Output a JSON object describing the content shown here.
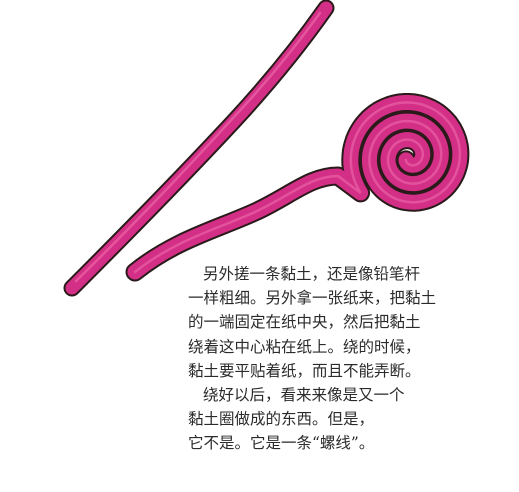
{
  "illustration": {
    "clay_color": "#d42f86",
    "clay_highlight": "#ef6fae",
    "outline_color": "#2a1a1a"
  },
  "story": {
    "lines": [
      "另外搓一条黏土，还是像铅笔杆",
      "一样粗细。另外拿一张纸来，把黏土",
      "的一端固定在纸中央，然后把黏土",
      "绕着这中心粘在纸上。绕的时候，",
      "黏土要平贴着纸，而且不能弄断。",
      "绕好以后，看来来像是又一个",
      "黏土圈做成的东西。但是，",
      "它不是。它是一条“螺线”。"
    ]
  }
}
